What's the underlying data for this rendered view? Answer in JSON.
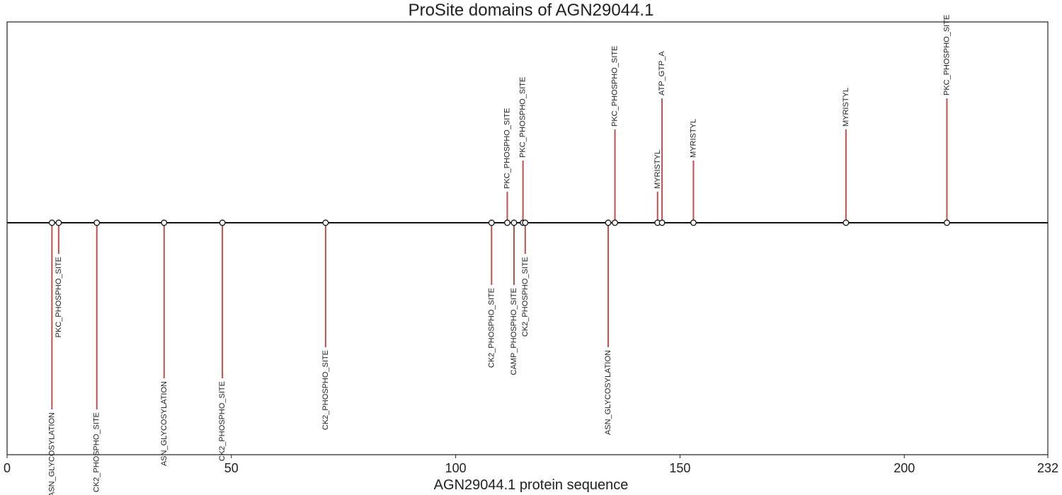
{
  "chart_data": {
    "type": "lollipop",
    "title": "ProSite domains of AGN29044.1",
    "xlabel": "AGN29044.1 protein sequence",
    "ylabel": "",
    "xlim": [
      0,
      232
    ],
    "xticks": [
      0,
      50,
      100,
      150,
      200,
      232
    ],
    "grid": false,
    "colors": {
      "stem": "#c0504d",
      "baseline": "#111111",
      "marker_fill": "#ffffff",
      "marker_edge": "#111111"
    },
    "sites": [
      {
        "pos": 10,
        "label": "ASN_GLYCOSYLATION",
        "level": -6
      },
      {
        "pos": 11.5,
        "label": "PKC_PHOSPHO_SITE",
        "level": -1
      },
      {
        "pos": 20,
        "label": "CK2_PHOSPHO_SITE",
        "level": -6
      },
      {
        "pos": 35,
        "label": "ASN_GLYCOSYLATION",
        "level": -5
      },
      {
        "pos": 48,
        "label": "CK2_PHOSPHO_SITE",
        "level": -5
      },
      {
        "pos": 71,
        "label": "CK2_PHOSPHO_SITE",
        "level": -4
      },
      {
        "pos": 108,
        "label": "CK2_PHOSPHO_SITE",
        "level": -2
      },
      {
        "pos": 111.5,
        "label": "PKC_PHOSPHO_SITE",
        "level": 1
      },
      {
        "pos": 113,
        "label": "CAMP_PHOSPHO_SITE",
        "level": -2
      },
      {
        "pos": 115,
        "label": "PKC_PHOSPHO_SITE",
        "level": 2
      },
      {
        "pos": 115.5,
        "label": "CK2_PHOSPHO_SITE",
        "level": -1
      },
      {
        "pos": 134,
        "label": "ASN_GLYCOSYLATION",
        "level": -4
      },
      {
        "pos": 135.5,
        "label": "PKC_PHOSPHO_SITE",
        "level": 3
      },
      {
        "pos": 145,
        "label": "MYRISTYL",
        "level": 1
      },
      {
        "pos": 146,
        "label": "ATP_GTP_A",
        "level": 4
      },
      {
        "pos": 153,
        "label": "MYRISTYL",
        "level": 2
      },
      {
        "pos": 187,
        "label": "MYRISTYL",
        "level": 3
      },
      {
        "pos": 209.5,
        "label": "PKC_PHOSPHO_SITE",
        "level": 4
      }
    ]
  }
}
